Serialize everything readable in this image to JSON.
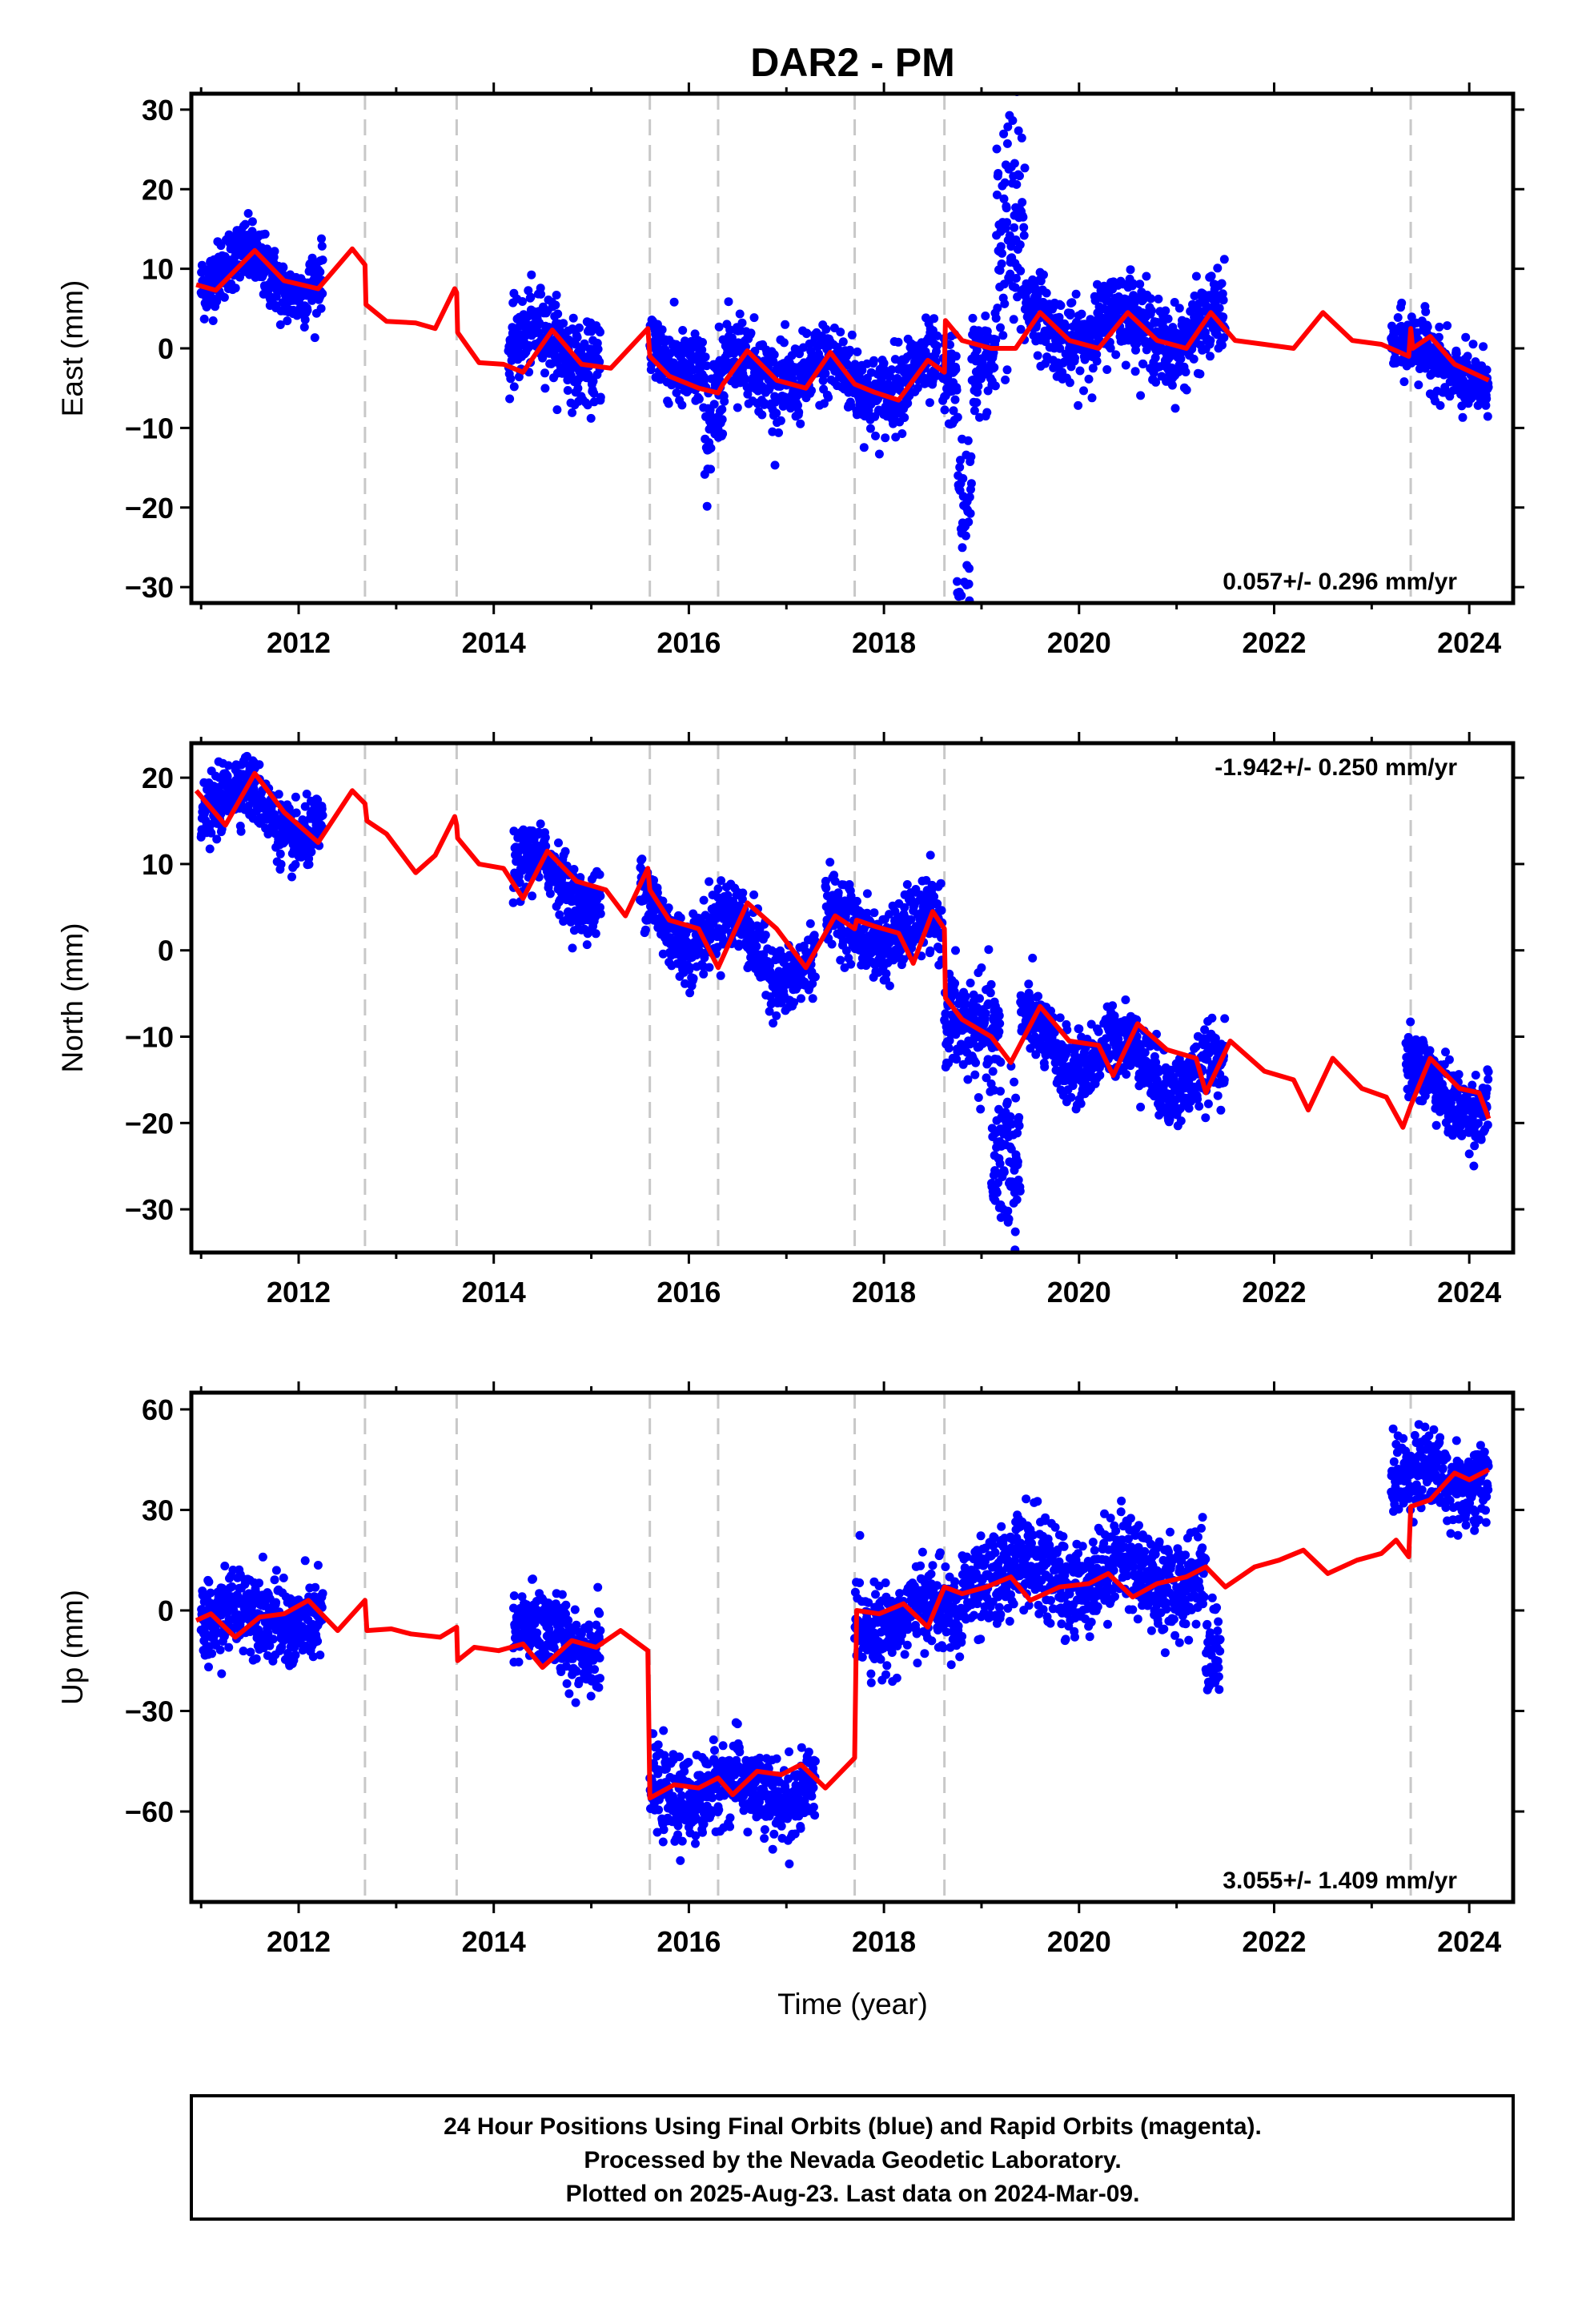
{
  "figure": {
    "title": "DAR2 - PM",
    "caption": [
      "24 Hour Positions Using Final Orbits (blue) and Rapid Orbits (magenta).",
      "Processed by the Nevada Geodetic Laboratory.",
      "Plotted on 2025-Aug-23. Last data on 2024-Mar-09."
    ],
    "colors": {
      "data_points": "#0000ff",
      "model_line": "#ff0000",
      "breaks": "#c8c8c8",
      "frame": "#000000"
    }
  },
  "chart_data": [
    {
      "type": "scatter",
      "panel": "east",
      "ylabel": "East (mm)",
      "xlabel": "",
      "xlim": [
        2010.9,
        2024.45
      ],
      "ylim": [
        -32,
        32
      ],
      "yticks": [
        -30,
        -20,
        -10,
        0,
        10,
        20,
        30
      ],
      "xticks": [
        2012,
        2014,
        2016,
        2018,
        2020,
        2022,
        2024
      ],
      "rate": "0.057+/- 0.296 mm/yr",
      "rate_position": "bottom-right",
      "breaks": [
        2012.68,
        2013.62,
        2015.6,
        2016.3,
        2017.7,
        2018.62,
        2023.4
      ],
      "segments": [
        {
          "start": 2011.0,
          "end": 2012.25,
          "base": 10,
          "trend": -1,
          "amp": 2.5,
          "noise": 2
        },
        {
          "start": 2014.15,
          "end": 2015.1,
          "base": 0,
          "trend": 0,
          "amp": 2.5,
          "noise": 2.5
        },
        {
          "start": 2015.6,
          "end": 2016.15,
          "base": 0,
          "trend": -3,
          "amp": 2,
          "noise": 2.5
        },
        {
          "start": 2016.15,
          "end": 2016.35,
          "base": -9,
          "trend": 0,
          "amp": 3,
          "noise": 4
        },
        {
          "start": 2016.35,
          "end": 2017.95,
          "base": -2,
          "trend": -1.5,
          "amp": 2,
          "noise": 2.5
        },
        {
          "start": 2017.95,
          "end": 2018.55,
          "base": -4,
          "trend": 0,
          "amp": 2,
          "noise": 2.5
        },
        {
          "start": 2018.6,
          "end": 2018.75,
          "base": -4,
          "trend": 0,
          "amp": 0,
          "noise": 3
        },
        {
          "start": 2018.75,
          "end": 2018.9,
          "base": -22,
          "trend": 0,
          "amp": 0,
          "noise": 6
        },
        {
          "start": 2018.9,
          "end": 2019.15,
          "base": -2,
          "trend": 0,
          "amp": 0,
          "noise": 3
        },
        {
          "start": 2019.15,
          "end": 2019.45,
          "base": 14,
          "trend": 0,
          "amp": 0,
          "noise": 8
        },
        {
          "start": 2019.45,
          "end": 2021.5,
          "base": 3,
          "trend": -0.5,
          "amp": 2.5,
          "noise": 2.5
        },
        {
          "start": 2023.2,
          "end": 2024.2,
          "base": 0,
          "trend": -4,
          "amp": 1.5,
          "noise": 2
        }
      ],
      "model": [
        [
          2010.95,
          8
        ],
        [
          2011.15,
          7.3
        ],
        [
          2011.55,
          12.3
        ],
        [
          2011.85,
          8.5
        ],
        [
          2012.2,
          7.5
        ],
        [
          2012.55,
          12.5
        ],
        [
          2012.68,
          10.5
        ],
        [
          2012.69,
          5.5
        ],
        [
          2012.9,
          3.4
        ],
        [
          2013.2,
          3.2
        ],
        [
          2013.4,
          2.5
        ],
        [
          2013.6,
          7.5
        ],
        [
          2013.62,
          7
        ],
        [
          2013.63,
          2
        ],
        [
          2013.85,
          -1.8
        ],
        [
          2014.1,
          -2
        ],
        [
          2014.3,
          -3
        ],
        [
          2014.6,
          2.3
        ],
        [
          2014.9,
          -2
        ],
        [
          2015.2,
          -2.5
        ],
        [
          2015.58,
          2.5
        ],
        [
          2015.6,
          -1
        ],
        [
          2015.8,
          -3.5
        ],
        [
          2016.1,
          -5
        ],
        [
          2016.3,
          -5.6
        ],
        [
          2016.35,
          -4.5
        ],
        [
          2016.6,
          -0.3
        ],
        [
          2016.9,
          -4
        ],
        [
          2017.2,
          -5
        ],
        [
          2017.45,
          -0.5
        ],
        [
          2017.7,
          -4.5
        ],
        [
          2017.9,
          -5.5
        ],
        [
          2018.15,
          -6.5
        ],
        [
          2018.45,
          -1.5
        ],
        [
          2018.62,
          -3
        ],
        [
          2018.63,
          3.5
        ],
        [
          2018.8,
          1
        ],
        [
          2019.1,
          0
        ],
        [
          2019.35,
          0
        ],
        [
          2019.6,
          4.5
        ],
        [
          2019.9,
          1
        ],
        [
          2020.2,
          0
        ],
        [
          2020.5,
          4.5
        ],
        [
          2020.8,
          1
        ],
        [
          2021.1,
          0
        ],
        [
          2021.35,
          4.5
        ],
        [
          2021.6,
          1
        ],
        [
          2021.9,
          0.5
        ],
        [
          2022.2,
          0
        ],
        [
          2022.5,
          4.5
        ],
        [
          2022.8,
          1
        ],
        [
          2023.1,
          0.5
        ],
        [
          2023.38,
          -1
        ],
        [
          2023.4,
          2.5
        ],
        [
          2023.42,
          0
        ],
        [
          2023.6,
          1.5
        ],
        [
          2023.85,
          -2
        ],
        [
          2024.2,
          -4
        ]
      ]
    },
    {
      "type": "scatter",
      "panel": "north",
      "ylabel": "North (mm)",
      "xlabel": "",
      "xlim": [
        2010.9,
        2024.45
      ],
      "ylim": [
        -35,
        24
      ],
      "yticks": [
        -30,
        -20,
        -10,
        0,
        10,
        20
      ],
      "xticks": [
        2012,
        2014,
        2016,
        2018,
        2020,
        2022,
        2024
      ],
      "rate": "-1.942+/- 0.250 mm/yr",
      "rate_position": "top-right",
      "breaks": [
        2012.68,
        2013.62,
        2015.6,
        2016.3,
        2017.7,
        2018.62,
        2023.4
      ],
      "segments": [
        {
          "start": 2011.0,
          "end": 2012.25,
          "base": 18,
          "trend": -3,
          "amp": 2.5,
          "noise": 1.8
        },
        {
          "start": 2014.2,
          "end": 2015.1,
          "base": 9,
          "trend": -2,
          "amp": 2.5,
          "noise": 1.8
        },
        {
          "start": 2015.5,
          "end": 2017.3,
          "base": 5,
          "trend": -4,
          "amp": 3,
          "noise": 2
        },
        {
          "start": 2017.4,
          "end": 2018.6,
          "base": 3,
          "trend": -1,
          "amp": 2,
          "noise": 2
        },
        {
          "start": 2018.62,
          "end": 2019.2,
          "base": -8,
          "trend": -4,
          "amp": 0,
          "noise": 3
        },
        {
          "start": 2019.1,
          "end": 2019.4,
          "base": -24,
          "trend": 0,
          "amp": 0,
          "noise": 5
        },
        {
          "start": 2019.4,
          "end": 2021.5,
          "base": -10,
          "trend": -2.5,
          "amp": 2.5,
          "noise": 2
        },
        {
          "start": 2023.35,
          "end": 2024.2,
          "base": -15,
          "trend": -3,
          "amp": 2,
          "noise": 2
        }
      ],
      "model": [
        [
          2010.95,
          18.5
        ],
        [
          2011.25,
          14.5
        ],
        [
          2011.55,
          20.5
        ],
        [
          2011.85,
          16
        ],
        [
          2012.2,
          12.5
        ],
        [
          2012.55,
          18.5
        ],
        [
          2012.68,
          17
        ],
        [
          2012.7,
          15
        ],
        [
          2012.9,
          13.5
        ],
        [
          2013.2,
          9
        ],
        [
          2013.4,
          11
        ],
        [
          2013.6,
          15.5
        ],
        [
          2013.62,
          14.5
        ],
        [
          2013.63,
          13
        ],
        [
          2013.85,
          10
        ],
        [
          2014.1,
          9.5
        ],
        [
          2014.3,
          6
        ],
        [
          2014.55,
          11.5
        ],
        [
          2014.85,
          8
        ],
        [
          2015.15,
          7
        ],
        [
          2015.35,
          4
        ],
        [
          2015.58,
          9.5
        ],
        [
          2015.6,
          7
        ],
        [
          2015.8,
          3.5
        ],
        [
          2016.1,
          2.5
        ],
        [
          2016.3,
          -2
        ],
        [
          2016.6,
          5.5
        ],
        [
          2016.9,
          2.5
        ],
        [
          2017.2,
          -2
        ],
        [
          2017.5,
          4
        ],
        [
          2017.7,
          2.5
        ],
        [
          2017.72,
          3.5
        ],
        [
          2017.9,
          2.8
        ],
        [
          2018.15,
          2
        ],
        [
          2018.3,
          -1.5
        ],
        [
          2018.5,
          4.5
        ],
        [
          2018.62,
          2.5
        ],
        [
          2018.63,
          -5.5
        ],
        [
          2018.8,
          -8
        ],
        [
          2019.1,
          -10
        ],
        [
          2019.3,
          -13
        ],
        [
          2019.6,
          -6.5
        ],
        [
          2019.9,
          -10.5
        ],
        [
          2020.2,
          -11
        ],
        [
          2020.35,
          -14.5
        ],
        [
          2020.6,
          -8.5
        ],
        [
          2020.9,
          -11.5
        ],
        [
          2021.2,
          -12.5
        ],
        [
          2021.3,
          -16.5
        ],
        [
          2021.55,
          -10.5
        ],
        [
          2021.9,
          -14
        ],
        [
          2022.2,
          -15
        ],
        [
          2022.35,
          -18.5
        ],
        [
          2022.6,
          -12.5
        ],
        [
          2022.9,
          -16
        ],
        [
          2023.15,
          -17
        ],
        [
          2023.32,
          -20.5
        ],
        [
          2023.4,
          -18
        ],
        [
          2023.6,
          -12.5
        ],
        [
          2023.9,
          -16
        ],
        [
          2024.1,
          -16.5
        ],
        [
          2024.2,
          -19.5
        ]
      ]
    },
    {
      "type": "scatter",
      "panel": "up",
      "ylabel": "Up (mm)",
      "xlabel": "Time (year)",
      "xlim": [
        2010.9,
        2024.45
      ],
      "ylim": [
        -87,
        65
      ],
      "yticks": [
        -60,
        -30,
        0,
        30,
        60
      ],
      "xticks": [
        2012,
        2014,
        2016,
        2018,
        2020,
        2022,
        2024
      ],
      "rate": "3.055+/- 1.409 mm/yr",
      "rate_position": "bottom-right",
      "breaks": [
        2012.68,
        2013.62,
        2015.6,
        2016.3,
        2017.7,
        2018.62,
        2023.4
      ],
      "segments": [
        {
          "start": 2011.0,
          "end": 2012.25,
          "base": -2,
          "trend": 0,
          "amp": 4,
          "noise": 6
        },
        {
          "start": 2014.2,
          "end": 2015.1,
          "base": -8,
          "trend": 0,
          "amp": 4,
          "noise": 6
        },
        {
          "start": 2015.6,
          "end": 2017.3,
          "base": -54,
          "trend": 0,
          "amp": 4,
          "noise": 6
        },
        {
          "start": 2017.7,
          "end": 2018.8,
          "base": -2,
          "trend": 0,
          "amp": 4,
          "noise": 6
        },
        {
          "start": 2018.8,
          "end": 2021.3,
          "base": 11,
          "trend": 0,
          "amp": 5,
          "noise": 7
        },
        {
          "start": 2021.3,
          "end": 2021.45,
          "base": -12,
          "trend": 0,
          "amp": 0,
          "noise": 7
        },
        {
          "start": 2023.2,
          "end": 2023.4,
          "base": 40,
          "trend": 0,
          "amp": 0,
          "noise": 6
        },
        {
          "start": 2023.4,
          "end": 2024.2,
          "base": 40,
          "trend": 0,
          "amp": 4,
          "noise": 6
        }
      ],
      "model": [
        [
          2010.95,
          -3
        ],
        [
          2011.1,
          -1
        ],
        [
          2011.35,
          -8
        ],
        [
          2011.6,
          -2
        ],
        [
          2011.85,
          -1
        ],
        [
          2012.1,
          3
        ],
        [
          2012.4,
          -6
        ],
        [
          2012.68,
          3
        ],
        [
          2012.7,
          -6
        ],
        [
          2012.95,
          -5.5
        ],
        [
          2013.15,
          -7
        ],
        [
          2013.45,
          -8
        ],
        [
          2013.62,
          -5
        ],
        [
          2013.63,
          -15
        ],
        [
          2013.8,
          -11
        ],
        [
          2014.05,
          -12
        ],
        [
          2014.3,
          -10
        ],
        [
          2014.5,
          -17
        ],
        [
          2014.8,
          -9
        ],
        [
          2015.05,
          -11
        ],
        [
          2015.3,
          -6
        ],
        [
          2015.58,
          -12
        ],
        [
          2015.6,
          -56
        ],
        [
          2015.85,
          -52
        ],
        [
          2016.1,
          -53
        ],
        [
          2016.3,
          -50
        ],
        [
          2016.45,
          -55
        ],
        [
          2016.7,
          -48
        ],
        [
          2016.95,
          -49
        ],
        [
          2017.15,
          -46
        ],
        [
          2017.4,
          -53
        ],
        [
          2017.7,
          -44
        ],
        [
          2017.72,
          0
        ],
        [
          2017.95,
          -1
        ],
        [
          2018.2,
          2
        ],
        [
          2018.45,
          -5
        ],
        [
          2018.62,
          7
        ],
        [
          2018.8,
          5
        ],
        [
          2019.05,
          7
        ],
        [
          2019.3,
          10
        ],
        [
          2019.5,
          3
        ],
        [
          2019.8,
          7
        ],
        [
          2020.1,
          8
        ],
        [
          2020.3,
          11
        ],
        [
          2020.55,
          4
        ],
        [
          2020.8,
          8
        ],
        [
          2021.1,
          10
        ],
        [
          2021.3,
          13
        ],
        [
          2021.5,
          7
        ],
        [
          2021.8,
          13
        ],
        [
          2022.05,
          15
        ],
        [
          2022.3,
          18
        ],
        [
          2022.55,
          11
        ],
        [
          2022.85,
          15
        ],
        [
          2023.1,
          17
        ],
        [
          2023.25,
          21
        ],
        [
          2023.38,
          16
        ],
        [
          2023.4,
          31
        ],
        [
          2023.6,
          33
        ],
        [
          2023.85,
          41
        ],
        [
          2024.0,
          39
        ],
        [
          2024.2,
          42
        ]
      ]
    }
  ]
}
